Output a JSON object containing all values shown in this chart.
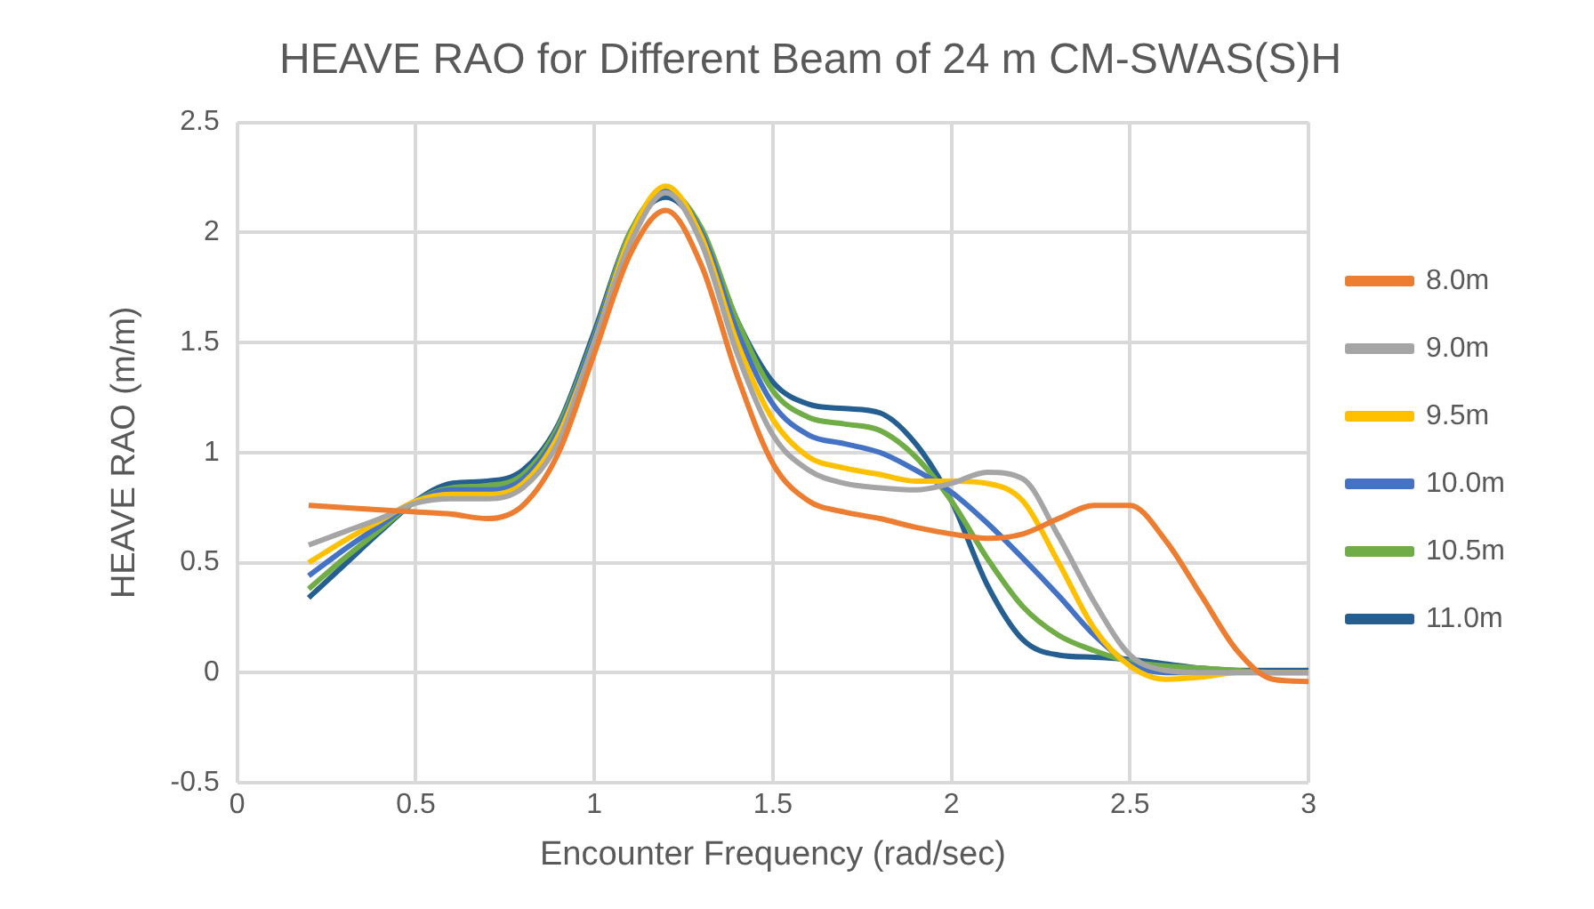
{
  "chart_data": {
    "type": "line",
    "title": "HEAVE RAO for Different Beam of 24 m CM-SWAS(S)H",
    "xlabel": "Encounter Frequency (rad/sec)",
    "ylabel": "HEAVE RAO (m/m)",
    "x": [
      0.2,
      0.3,
      0.4,
      0.5,
      0.6,
      0.7,
      0.8,
      0.9,
      1.0,
      1.1,
      1.2,
      1.3,
      1.4,
      1.5,
      1.6,
      1.7,
      1.8,
      1.9,
      2.0,
      2.1,
      2.2,
      2.3,
      2.4,
      2.5,
      2.6,
      2.7,
      2.8,
      2.9,
      3.0
    ],
    "series": [
      {
        "name": "8.0m",
        "color": "#ed7d31",
        "values": [
          0.76,
          0.75,
          0.74,
          0.73,
          0.72,
          0.7,
          0.76,
          1.0,
          1.45,
          1.9,
          2.1,
          1.85,
          1.35,
          0.95,
          0.78,
          0.73,
          0.7,
          0.66,
          0.63,
          0.61,
          0.63,
          0.7,
          0.76,
          0.76,
          0.6,
          0.35,
          0.1,
          -0.03,
          -0.04
        ]
      },
      {
        "name": "9.0m",
        "color": "#a5a5a5",
        "values": [
          0.58,
          0.64,
          0.7,
          0.77,
          0.79,
          0.79,
          0.84,
          1.05,
          1.5,
          1.95,
          2.18,
          1.95,
          1.45,
          1.08,
          0.92,
          0.86,
          0.84,
          0.83,
          0.86,
          0.91,
          0.88,
          0.62,
          0.32,
          0.08,
          0.01,
          0.0,
          0.0,
          0.0,
          0.0
        ]
      },
      {
        "name": "9.5m",
        "color": "#ffc000",
        "values": [
          0.5,
          0.6,
          0.69,
          0.78,
          0.81,
          0.81,
          0.86,
          1.08,
          1.5,
          1.98,
          2.21,
          1.98,
          1.5,
          1.15,
          0.98,
          0.93,
          0.9,
          0.87,
          0.87,
          0.86,
          0.78,
          0.5,
          0.2,
          0.03,
          -0.03,
          -0.02,
          0.0,
          0.0,
          0.0
        ]
      },
      {
        "name": "10.0m",
        "color": "#4472c4",
        "values": [
          0.44,
          0.56,
          0.67,
          0.78,
          0.83,
          0.83,
          0.88,
          1.1,
          1.52,
          1.98,
          2.19,
          2.0,
          1.55,
          1.22,
          1.08,
          1.04,
          1.0,
          0.92,
          0.82,
          0.68,
          0.52,
          0.35,
          0.17,
          0.04,
          0.0,
          0.0,
          null,
          null,
          null
        ]
      },
      {
        "name": "10.5m",
        "color": "#70ad47",
        "values": [
          0.38,
          0.52,
          0.65,
          0.78,
          0.84,
          0.85,
          0.9,
          1.12,
          1.53,
          2.0,
          2.19,
          2.02,
          1.6,
          1.28,
          1.16,
          1.13,
          1.1,
          0.98,
          0.78,
          0.52,
          0.3,
          0.17,
          0.1,
          0.05,
          0.03,
          0.02,
          0.01,
          0.0,
          0.0
        ]
      },
      {
        "name": "11.0m",
        "color": "#255e91",
        "values": [
          0.34,
          0.49,
          0.64,
          0.78,
          0.86,
          0.87,
          0.92,
          1.13,
          1.55,
          2.0,
          2.16,
          2.0,
          1.6,
          1.32,
          1.22,
          1.2,
          1.18,
          1.04,
          0.78,
          0.4,
          0.15,
          0.08,
          0.07,
          0.06,
          0.04,
          0.02,
          0.01,
          0.01,
          0.01
        ]
      }
    ],
    "xlim": [
      0,
      3
    ],
    "xticks": [
      0,
      0.5,
      1,
      1.5,
      2,
      2.5,
      3
    ],
    "ylim": [
      -0.5,
      2.5
    ],
    "yticks": [
      -0.5,
      0,
      0.5,
      1,
      1.5,
      2,
      2.5
    ],
    "grid": true,
    "legend": "right",
    "marker": "none",
    "line_style": "solid"
  }
}
